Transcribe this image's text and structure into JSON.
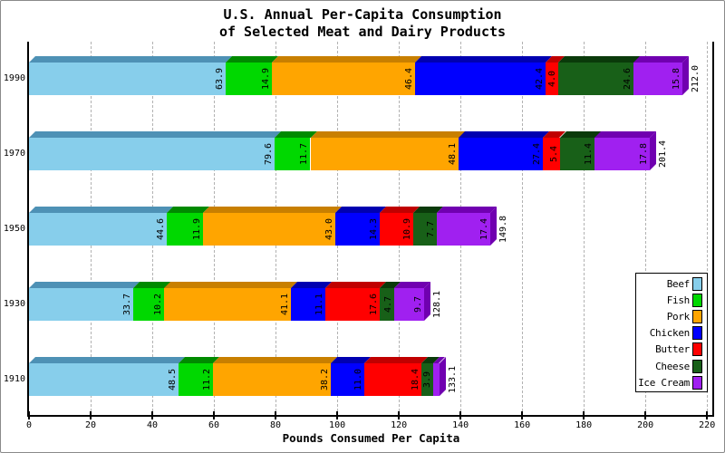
{
  "title": {
    "line1": "U.S. Annual Per-Capita Consumption",
    "line2": "of Selected Meat and Dairy Products"
  },
  "chart_data": {
    "type": "bar",
    "variant": "horizontal-stacked-3d",
    "categories": [
      "1990",
      "1970",
      "1950",
      "1930",
      "1910"
    ],
    "series": [
      {
        "name": "Beef",
        "face": "#87CEEB",
        "dark": "#4E91B5",
        "values": [
          63.9,
          79.6,
          44.6,
          33.7,
          48.5
        ]
      },
      {
        "name": "Fish",
        "face": "#00D800",
        "dark": "#008A00",
        "values": [
          14.9,
          11.7,
          11.9,
          10.2,
          11.2
        ]
      },
      {
        "name": "Pork",
        "face": "#FFA500",
        "dark": "#C87F00",
        "values": [
          46.4,
          48.1,
          43.0,
          41.1,
          38.2
        ]
      },
      {
        "name": "Chicken",
        "face": "#0000FF",
        "dark": "#0000B0",
        "values": [
          42.4,
          27.4,
          14.3,
          11.1,
          11.0
        ]
      },
      {
        "name": "Butter",
        "face": "#FF0000",
        "dark": "#C00000",
        "values": [
          4.0,
          5.4,
          10.9,
          17.6,
          18.4
        ]
      },
      {
        "name": "Cheese",
        "face": "#186018",
        "dark": "#0A3A0A",
        "values": [
          24.6,
          11.4,
          7.7,
          4.7,
          3.9
        ]
      },
      {
        "name": "Ice Cream",
        "face": "#A020F0",
        "dark": "#7000B0",
        "values": [
          15.8,
          17.8,
          17.4,
          9.7,
          1.9
        ]
      }
    ],
    "totals": [
      212.0,
      201.4,
      149.8,
      128.1,
      133.1
    ],
    "xlabel": "Pounds Consumed Per Capita",
    "xticks": [
      0,
      20,
      40,
      60,
      80,
      100,
      120,
      140,
      160,
      180,
      200,
      220
    ],
    "xlim": [
      0,
      222
    ],
    "grid": "vertical-dashed-gray",
    "legend_position": "inside-right",
    "segment_label_min_value": 3.0,
    "colors": {
      "axis": "#000000",
      "grid": "#b2b2b2",
      "background": "#ffffff"
    }
  }
}
